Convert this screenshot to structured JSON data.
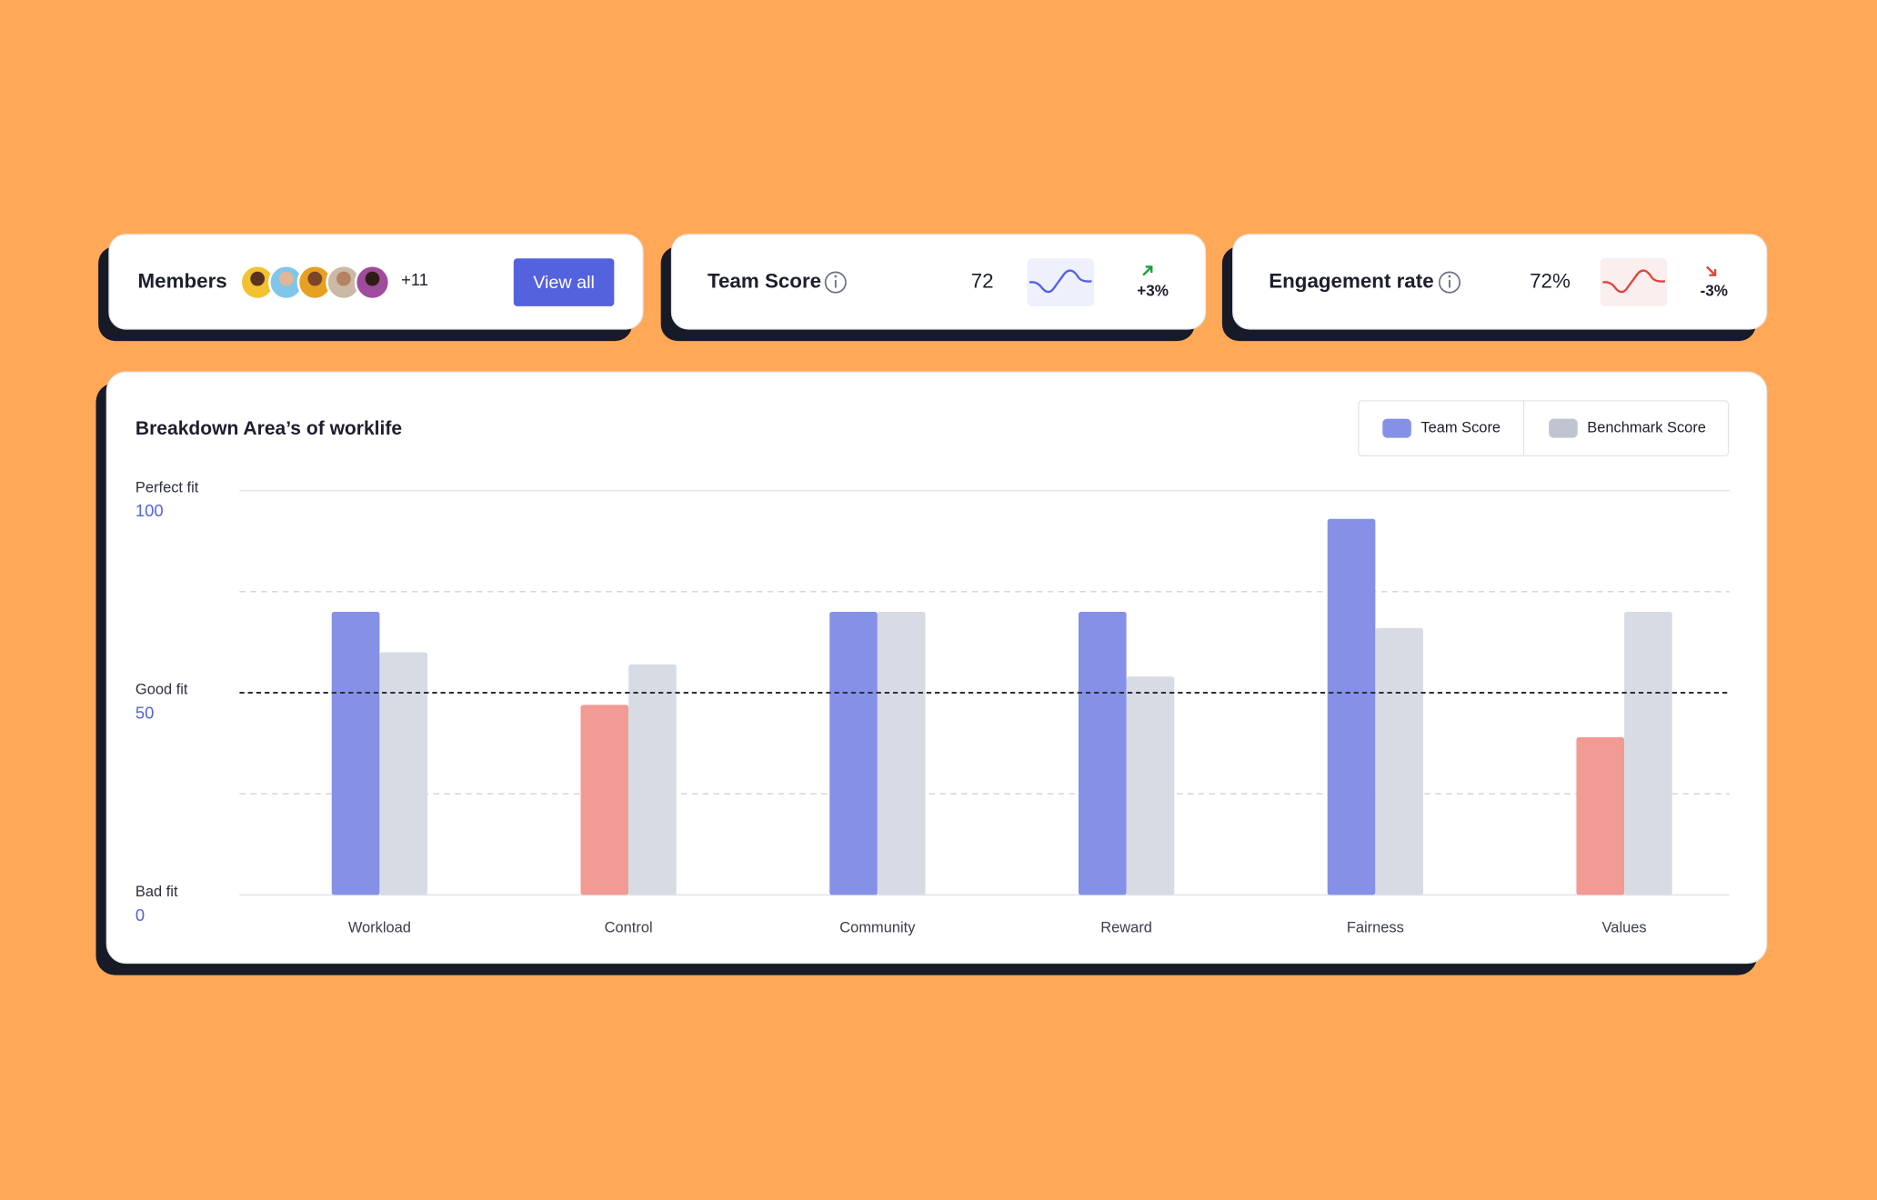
{
  "cards": [
    {
      "title": "Members",
      "extra": "+11",
      "button": "View all"
    },
    {
      "title": "Team Score",
      "value": "72",
      "change": "+3%"
    },
    {
      "title": "Engagement rate",
      "value": "72%",
      "change": "-3%"
    }
  ],
  "chart_data": {
    "type": "bar",
    "title": "Breakdown Area’s of worklife",
    "categories": [
      "Workload",
      "Control",
      "Community",
      "Reward",
      "Fairness",
      "Values"
    ],
    "series": [
      {
        "name": "Team Score",
        "color": "#8591e6",
        "below_color": "#f29a94",
        "values": [
          70,
          47,
          70,
          70,
          93,
          39
        ]
      },
      {
        "name": "Benchmark Score",
        "color": "#d7dbe4",
        "values": [
          60,
          57,
          70,
          54,
          66,
          70
        ]
      }
    ],
    "ylim": [
      0,
      100
    ],
    "yticks": [
      0,
      50,
      100
    ],
    "ytick_captions": [
      "Bad fit",
      "Good fit",
      "Perfect fit"
    ],
    "minor_yticks": [
      25,
      75
    ],
    "reference_line": 50,
    "legend": "top-right",
    "grid": true
  }
}
